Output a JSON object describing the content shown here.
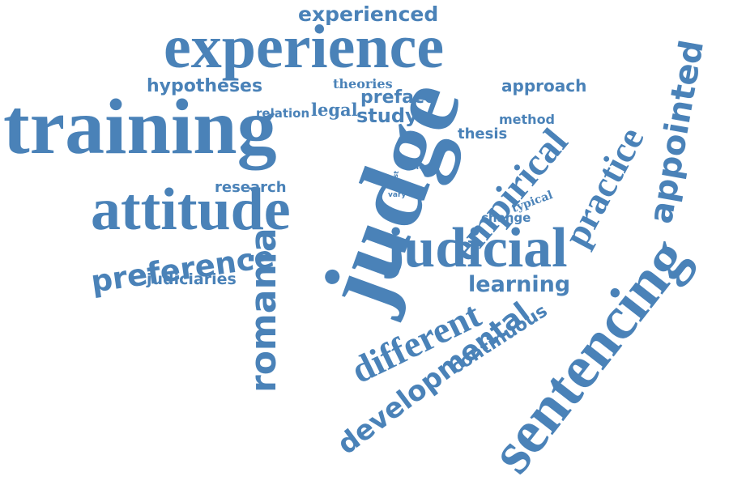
{
  "color": "#4a82b8",
  "words": [
    {
      "text": "experienced"
    },
    {
      "text": "experience"
    },
    {
      "text": "hypotheses"
    },
    {
      "text": "theories"
    },
    {
      "text": "preface"
    },
    {
      "text": "approach"
    },
    {
      "text": "relation"
    },
    {
      "text": "legal"
    },
    {
      "text": "study"
    },
    {
      "text": "training"
    },
    {
      "text": "judge"
    },
    {
      "text": "method"
    },
    {
      "text": "thesis"
    },
    {
      "text": "empirical"
    },
    {
      "text": "practice"
    },
    {
      "text": "appointed"
    },
    {
      "text": "research"
    },
    {
      "text": "need"
    },
    {
      "text": "test"
    },
    {
      "text": "vary"
    },
    {
      "text": "typical"
    },
    {
      "text": "attitude"
    },
    {
      "text": "change"
    },
    {
      "text": "preference"
    },
    {
      "text": "romania"
    },
    {
      "text": "judicial"
    },
    {
      "text": "sentencing"
    },
    {
      "text": "judiciaries"
    },
    {
      "text": "learning"
    },
    {
      "text": "different"
    },
    {
      "text": "continuous"
    },
    {
      "text": "developmental"
    }
  ]
}
